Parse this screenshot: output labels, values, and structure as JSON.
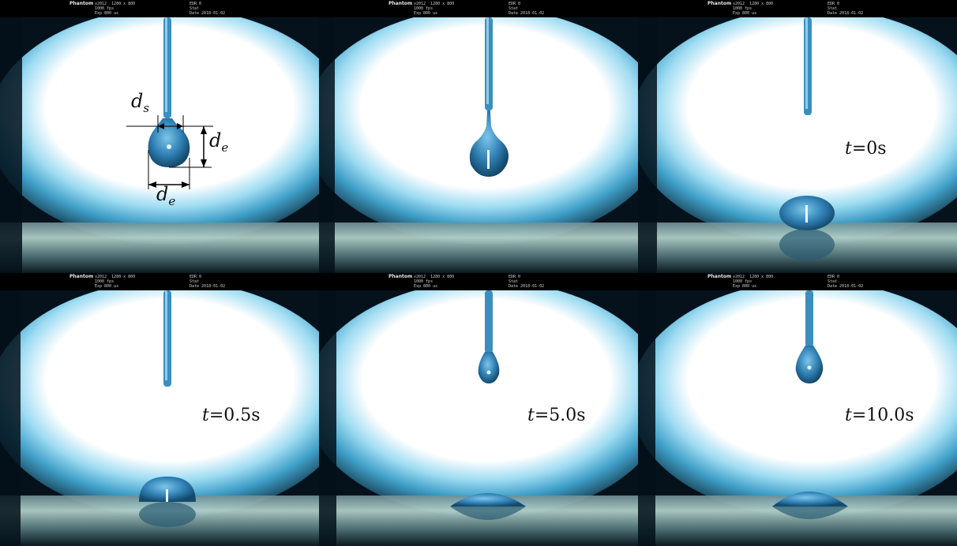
{
  "panels": [
    {
      "id": "p1",
      "time_var": "",
      "time_value": "",
      "hud": {
        "brand": "Phantom",
        "l1": "v2012  1280 x 800",
        "l2": "1000 fps",
        "l3": "Exp 800 us",
        "r1": "EDR 0",
        "r2": "Stat",
        "r3": "Date 2018-01-02"
      }
    },
    {
      "id": "p2",
      "time_var": "",
      "time_value": "",
      "hud": {
        "brand": "Phantom",
        "l1": "v2012  1280 x 800",
        "l2": "1000 fps",
        "l3": "Exp 800 us",
        "r1": "EDR 0",
        "r2": "Stat",
        "r3": "Date 2018-01-02"
      }
    },
    {
      "id": "p3",
      "time_var": "t",
      "time_value": "=0s",
      "hud": {
        "brand": "Phantom",
        "l1": "v2012  1280 x 800",
        "l2": "1000 fps",
        "l3": "Exp 800 us",
        "r1": "EDR 0",
        "r2": "Stat",
        "r3": "Date 2018-01-02"
      }
    },
    {
      "id": "p4",
      "time_var": "t",
      "time_value": "=0.5s",
      "hud": {
        "brand": "Phantom",
        "l1": "v2012  1280 x 800",
        "l2": "1000 fps",
        "l3": "Exp 800 us",
        "r1": "EDR 0",
        "r2": "Stat",
        "r3": "Date 2018-01-02"
      }
    },
    {
      "id": "p5",
      "time_var": "t",
      "time_value": "=5.0s",
      "hud": {
        "brand": "Phantom",
        "l1": "v2012  1280 x 800",
        "l2": "1000 fps",
        "l3": "Exp 800 us",
        "r1": "EDR 0",
        "r2": "Stat",
        "r3": "Date 2018-01-02"
      }
    },
    {
      "id": "p6",
      "time_var": "t",
      "time_value": "=10.0s",
      "hud": {
        "brand": "Phantom",
        "l1": "v2012  1280 x 800",
        "l2": "1000 fps",
        "l3": "Exp 800 us",
        "r1": "EDR 0",
        "r2": "Stat",
        "r3": "Date 2018-01-02"
      }
    }
  ],
  "annotations": {
    "d_s": {
      "base": "d",
      "sub": "s"
    },
    "d_e_vertical": {
      "base": "d",
      "sub": "e"
    },
    "d_e_horizontal": {
      "base": "d",
      "sub": "e"
    }
  },
  "colors": {
    "background_glow": "#ffffff",
    "vignette_dark": "#05121c",
    "cyan_rim": "#4fb6dd",
    "droplet": "#2f7fb3",
    "droplet_dark": "#144a6e",
    "surface": "#3a5560"
  }
}
